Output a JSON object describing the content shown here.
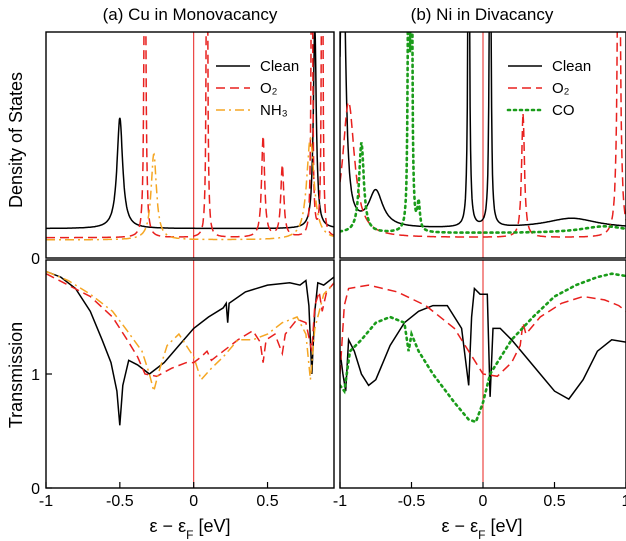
{
  "colors": {
    "clean": "#000000",
    "o2": "#e8201e",
    "nh3": "#f5a623",
    "co": "#1a9c1a",
    "fermi": "#e8201e"
  },
  "chart_data": [
    {
      "type": "line",
      "title": "(a) Cu in Monovacancy",
      "ylabel": "Density of States",
      "xlim": [
        -1.0,
        0.95
      ],
      "ylim": [
        0,
        1
      ],
      "xticks": [],
      "yticks": [],
      "legend": "top-right",
      "series": [
        {
          "name": "Clean",
          "style": "solid",
          "color": "#000000",
          "baseline": 0.13,
          "peaks": [
            [
              -0.5,
              0.023,
              0.49
            ],
            [
              0.82,
              0.012,
              0.9
            ]
          ]
        },
        {
          "name": "O₂",
          "style": "dashed",
          "color": "#e8201e",
          "baseline": 0.09,
          "peaks": [
            [
              -0.33,
              0.006,
              2.0
            ],
            [
              0.09,
              0.005,
              2.0
            ],
            [
              0.47,
              0.012,
              0.45
            ],
            [
              0.6,
              0.012,
              0.32
            ],
            [
              0.8,
              0.005,
              2.0
            ],
            [
              0.87,
              0.005,
              2.0
            ]
          ]
        },
        {
          "name": "NH₃",
          "style": "dashdot",
          "color": "#f5a623",
          "baseline": 0.08,
          "peaks": [
            [
              -0.27,
              0.022,
              0.38
            ],
            [
              0.79,
              0.03,
              0.45
            ]
          ]
        }
      ]
    },
    {
      "type": "line",
      "title": "(b) Ni in Divacancy",
      "ylabel": "",
      "xlim": [
        -1.0,
        1.0
      ],
      "ylim": [
        0,
        1
      ],
      "xticks": [],
      "yticks": [],
      "legend": "top-right",
      "series": [
        {
          "name": "Clean",
          "style": "solid",
          "color": "#000000",
          "baseline": 0.13,
          "peaks": [
            [
              -0.98,
              0.02,
              1.5
            ],
            [
              -0.75,
              0.06,
              0.16
            ],
            [
              -0.1,
              0.006,
              2.0
            ],
            [
              0.05,
              0.006,
              2.0
            ],
            [
              0.62,
              0.22,
              0.045
            ]
          ]
        },
        {
          "name": "O₂",
          "style": "dashed",
          "color": "#e8201e",
          "baseline": 0.09,
          "peaks": [
            [
              -0.94,
              0.05,
              0.6
            ],
            [
              0.28,
              0.012,
              0.55
            ],
            [
              0.95,
              0.01,
              2.0
            ]
          ]
        },
        {
          "name": "CO",
          "style": "dotted",
          "color": "#1a9c1a",
          "baseline": 0.11,
          "peaks": [
            [
              -0.85,
              0.02,
              0.4
            ],
            [
              -0.52,
              0.005,
              2.0
            ],
            [
              -0.5,
              0.005,
              2.0
            ],
            [
              -0.45,
              0.01,
              0.12
            ],
            [
              0.85,
              0.2,
              0.03
            ]
          ]
        }
      ]
    },
    {
      "type": "line",
      "title": "",
      "ylabel": "Transmission",
      "xlabel": "ε − εF [eV]",
      "xlim": [
        -1.0,
        0.95
      ],
      "ylim": [
        0,
        2
      ],
      "xticks": [
        "-1",
        "-0.5",
        "0",
        "0.5"
      ],
      "xtick_values": [
        -1,
        -0.5,
        0,
        0.5
      ],
      "yticks": [
        "0",
        "1"
      ],
      "ytick_values": [
        0,
        1
      ],
      "legend": "none",
      "series": [
        {
          "name": "Clean",
          "style": "solid",
          "color": "#000000",
          "points": [
            [
              -1.0,
              1.9
            ],
            [
              -0.9,
              1.85
            ],
            [
              -0.8,
              1.75
            ],
            [
              -0.7,
              1.55
            ],
            [
              -0.62,
              1.3
            ],
            [
              -0.56,
              1.1
            ],
            [
              -0.52,
              0.85
            ],
            [
              -0.5,
              0.55
            ],
            [
              -0.48,
              0.9
            ],
            [
              -0.44,
              1.12
            ],
            [
              -0.38,
              1.08
            ],
            [
              -0.3,
              1.0
            ],
            [
              -0.2,
              1.1
            ],
            [
              -0.1,
              1.25
            ],
            [
              0.0,
              1.4
            ],
            [
              0.1,
              1.5
            ],
            [
              0.2,
              1.58
            ],
            [
              0.22,
              1.62
            ],
            [
              0.23,
              1.45
            ],
            [
              0.24,
              1.62
            ],
            [
              0.35,
              1.72
            ],
            [
              0.5,
              1.78
            ],
            [
              0.65,
              1.8
            ],
            [
              0.72,
              1.78
            ],
            [
              0.76,
              1.82
            ],
            [
              0.78,
              1.6
            ],
            [
              0.8,
              1.0
            ],
            [
              0.82,
              1.55
            ],
            [
              0.84,
              1.8
            ],
            [
              0.88,
              1.78
            ],
            [
              0.95,
              1.85
            ]
          ]
        },
        {
          "name": "O₂",
          "style": "dashed",
          "color": "#e8201e",
          "points": [
            [
              -1.0,
              1.88
            ],
            [
              -0.85,
              1.78
            ],
            [
              -0.7,
              1.68
            ],
            [
              -0.55,
              1.5
            ],
            [
              -0.45,
              1.3
            ],
            [
              -0.38,
              1.15
            ],
            [
              -0.33,
              1.0
            ],
            [
              -0.25,
              0.98
            ],
            [
              -0.15,
              1.05
            ],
            [
              -0.05,
              1.1
            ],
            [
              0.0,
              1.1
            ],
            [
              0.05,
              1.15
            ],
            [
              0.09,
              1.2
            ],
            [
              0.12,
              1.12
            ],
            [
              0.2,
              1.2
            ],
            [
              0.3,
              1.3
            ],
            [
              0.4,
              1.38
            ],
            [
              0.45,
              1.28
            ],
            [
              0.47,
              1.1
            ],
            [
              0.49,
              1.3
            ],
            [
              0.55,
              1.35
            ],
            [
              0.6,
              1.18
            ],
            [
              0.62,
              1.35
            ],
            [
              0.7,
              1.48
            ],
            [
              0.76,
              1.45
            ],
            [
              0.8,
              1.2
            ],
            [
              0.82,
              1.6
            ],
            [
              0.85,
              1.72
            ],
            [
              0.87,
              1.55
            ],
            [
              0.9,
              1.72
            ],
            [
              0.95,
              1.8
            ]
          ]
        },
        {
          "name": "NH₃",
          "style": "dashdot",
          "color": "#f5a623",
          "points": [
            [
              -1.0,
              1.9
            ],
            [
              -0.85,
              1.82
            ],
            [
              -0.7,
              1.7
            ],
            [
              -0.55,
              1.55
            ],
            [
              -0.45,
              1.38
            ],
            [
              -0.35,
              1.2
            ],
            [
              -0.3,
              1.0
            ],
            [
              -0.27,
              0.85
            ],
            [
              -0.24,
              1.0
            ],
            [
              -0.18,
              1.25
            ],
            [
              -0.1,
              1.35
            ],
            [
              0.0,
              1.15
            ],
            [
              0.05,
              0.95
            ],
            [
              0.12,
              1.05
            ],
            [
              0.2,
              1.15
            ],
            [
              0.3,
              1.3
            ],
            [
              0.4,
              1.3
            ],
            [
              0.5,
              1.35
            ],
            [
              0.6,
              1.45
            ],
            [
              0.7,
              1.5
            ],
            [
              0.76,
              1.35
            ],
            [
              0.79,
              0.95
            ],
            [
              0.82,
              1.4
            ],
            [
              0.88,
              1.7
            ],
            [
              0.95,
              1.8
            ]
          ]
        }
      ]
    },
    {
      "type": "line",
      "title": "",
      "ylabel": "",
      "xlabel": "ε − εF [eV]",
      "xlim": [
        -1.0,
        1.0
      ],
      "ylim": [
        0,
        2
      ],
      "xticks": [
        "-1",
        "-0.5",
        "0",
        "0.5",
        "1"
      ],
      "xtick_values": [
        -1,
        -0.5,
        0,
        0.5,
        1
      ],
      "yticks": [],
      "legend": "none",
      "series": [
        {
          "name": "Clean",
          "style": "solid",
          "color": "#000000",
          "points": [
            [
              -1.0,
              1.2
            ],
            [
              -0.98,
              1.0
            ],
            [
              -0.96,
              0.85
            ],
            [
              -0.94,
              1.3
            ],
            [
              -0.9,
              1.2
            ],
            [
              -0.85,
              1.0
            ],
            [
              -0.8,
              0.9
            ],
            [
              -0.75,
              0.95
            ],
            [
              -0.65,
              1.25
            ],
            [
              -0.55,
              1.45
            ],
            [
              -0.45,
              1.55
            ],
            [
              -0.35,
              1.6
            ],
            [
              -0.25,
              1.6
            ],
            [
              -0.15,
              1.4
            ],
            [
              -0.1,
              0.9
            ],
            [
              -0.08,
              1.5
            ],
            [
              -0.06,
              1.75
            ],
            [
              -0.02,
              1.7
            ],
            [
              0.03,
              1.7
            ],
            [
              0.05,
              0.8
            ],
            [
              0.07,
              1.4
            ],
            [
              0.12,
              1.4
            ],
            [
              0.2,
              1.3
            ],
            [
              0.3,
              1.15
            ],
            [
              0.4,
              1.0
            ],
            [
              0.5,
              0.85
            ],
            [
              0.6,
              0.78
            ],
            [
              0.7,
              0.95
            ],
            [
              0.8,
              1.2
            ],
            [
              0.9,
              1.3
            ],
            [
              1.0,
              1.28
            ]
          ]
        },
        {
          "name": "O₂",
          "style": "dashed",
          "color": "#e8201e",
          "points": [
            [
              -1.0,
              1.0
            ],
            [
              -0.97,
              1.6
            ],
            [
              -0.94,
              1.75
            ],
            [
              -0.8,
              1.78
            ],
            [
              -0.6,
              1.72
            ],
            [
              -0.4,
              1.6
            ],
            [
              -0.2,
              1.4
            ],
            [
              -0.1,
              1.2
            ],
            [
              0.0,
              1.0
            ],
            [
              0.1,
              0.98
            ],
            [
              0.2,
              1.1
            ],
            [
              0.26,
              1.25
            ],
            [
              0.28,
              1.45
            ],
            [
              0.3,
              1.35
            ],
            [
              0.4,
              1.5
            ],
            [
              0.55,
              1.62
            ],
            [
              0.7,
              1.68
            ],
            [
              0.85,
              1.65
            ],
            [
              0.95,
              1.6
            ],
            [
              1.0,
              1.55
            ]
          ]
        },
        {
          "name": "CO",
          "style": "dotted",
          "color": "#1a9c1a",
          "points": [
            [
              -1.0,
              0.9
            ],
            [
              -0.97,
              0.85
            ],
            [
              -0.93,
              1.2
            ],
            [
              -0.85,
              1.3
            ],
            [
              -0.75,
              1.45
            ],
            [
              -0.65,
              1.5
            ],
            [
              -0.55,
              1.45
            ],
            [
              -0.52,
              1.2
            ],
            [
              -0.5,
              1.35
            ],
            [
              -0.45,
              1.2
            ],
            [
              -0.35,
              1.0
            ],
            [
              -0.2,
              0.75
            ],
            [
              -0.1,
              0.6
            ],
            [
              -0.05,
              0.58
            ],
            [
              0.0,
              0.75
            ],
            [
              0.05,
              1.0
            ],
            [
              0.1,
              1.1
            ],
            [
              0.2,
              1.3
            ],
            [
              0.35,
              1.5
            ],
            [
              0.5,
              1.68
            ],
            [
              0.65,
              1.78
            ],
            [
              0.8,
              1.85
            ],
            [
              0.9,
              1.88
            ],
            [
              1.0,
              1.86
            ]
          ]
        }
      ]
    }
  ]
}
